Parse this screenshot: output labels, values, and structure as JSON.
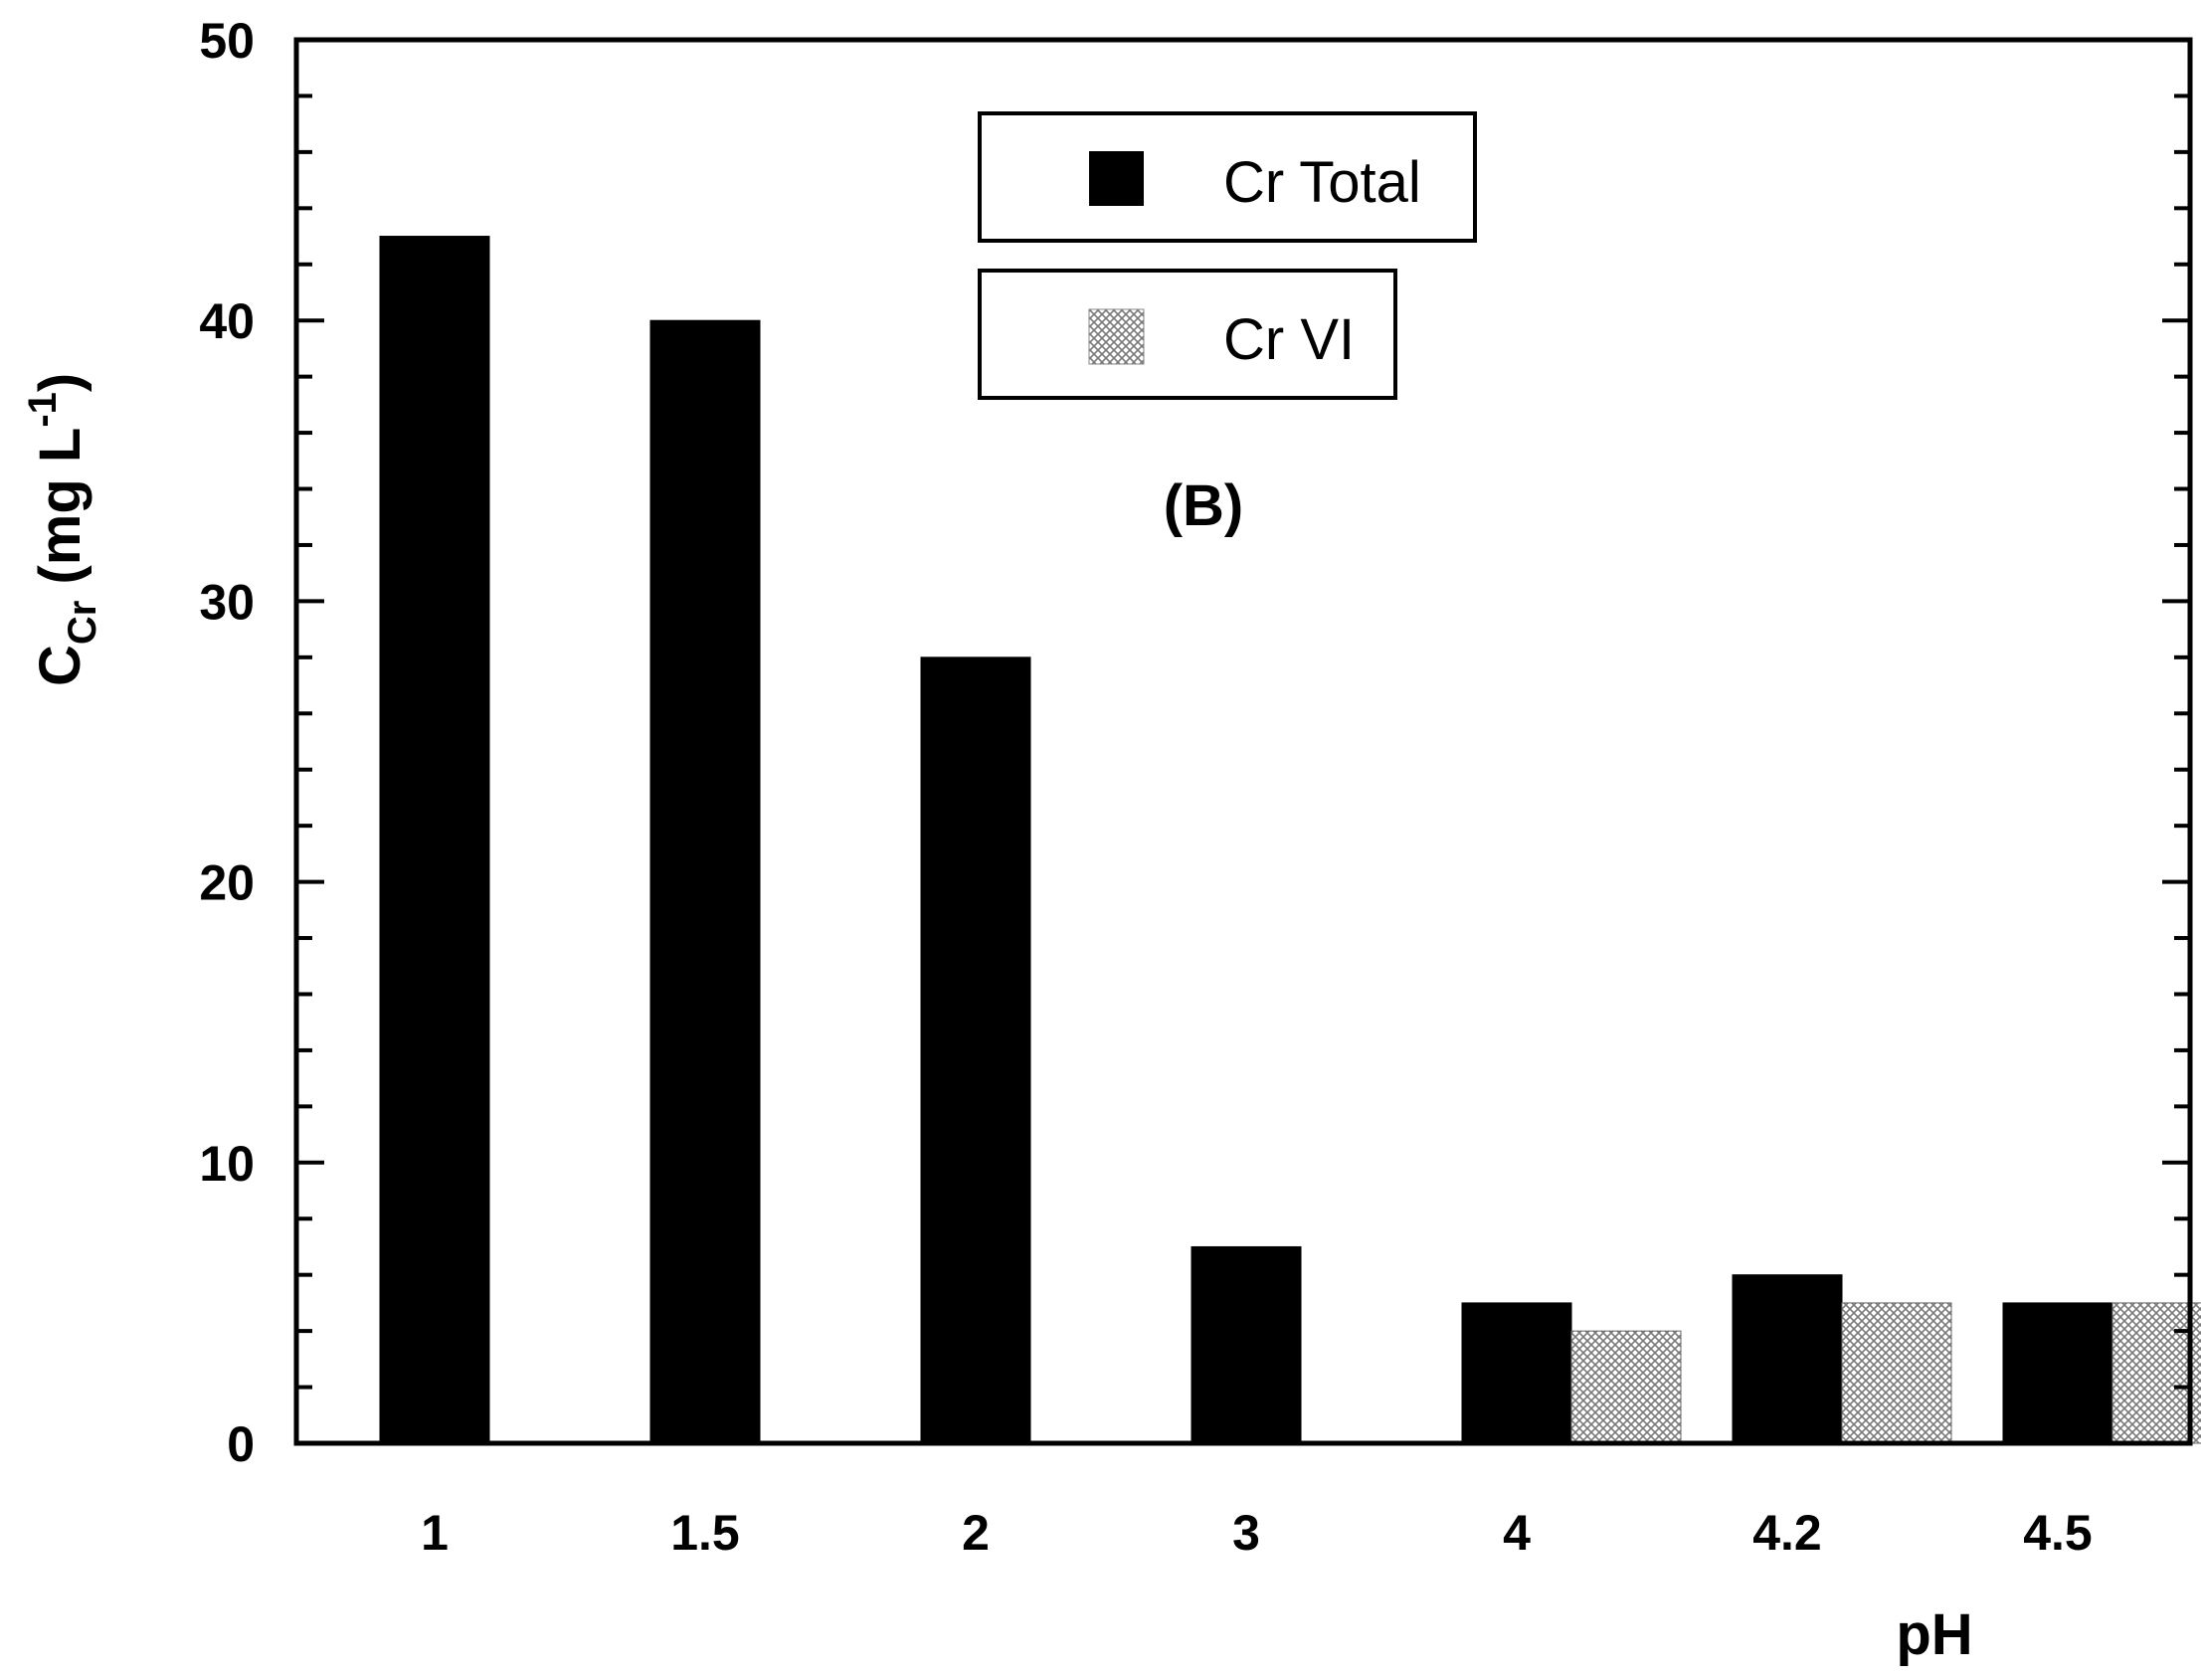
{
  "chart_data": {
    "type": "bar",
    "categories": [
      "1",
      "1.5",
      "2",
      "3",
      "4",
      "4.2",
      "4.5"
    ],
    "series": [
      {
        "name": "Cr Total",
        "values": [
          43,
          40,
          28,
          7,
          5,
          6,
          5
        ],
        "color": "#000000",
        "pattern": "solid"
      },
      {
        "name": "Cr VI",
        "values": [
          0,
          0,
          0,
          0,
          4,
          5,
          5
        ],
        "color": "#9a9a9a",
        "pattern": "crosshatch"
      }
    ],
    "xlabel": "pH",
    "ylabel": {
      "main": "C",
      "subscript": "Cr",
      "units_open": " (mg L",
      "units_sup": "-1",
      "units_close": ")"
    },
    "ylim": [
      0,
      50
    ],
    "yticks": [
      0,
      10,
      20,
      30,
      40,
      50
    ],
    "annotation": "(B)",
    "legend": "upper-center, boxed entries"
  }
}
